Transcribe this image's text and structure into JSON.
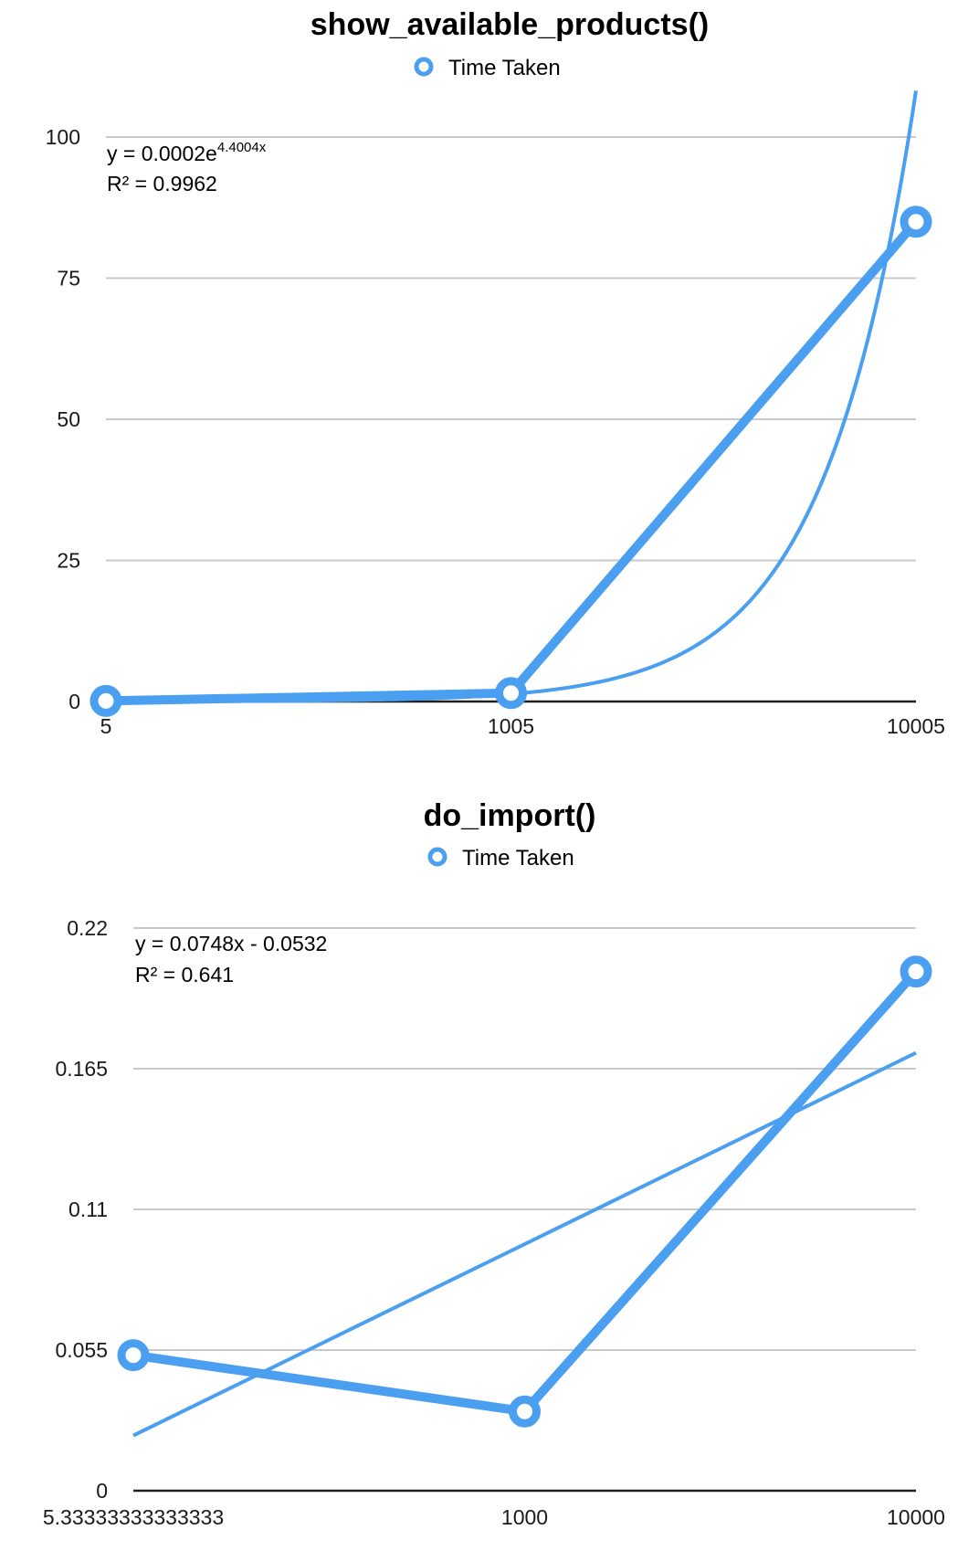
{
  "chart_data": [
    {
      "type": "line",
      "title": "show_available_products()",
      "xlabel": "",
      "ylabel": "",
      "categories": [
        "5",
        "1005",
        "10005"
      ],
      "series": [
        {
          "name": "Time Taken",
          "values": [
            0.1,
            1.5,
            85
          ]
        }
      ],
      "trendline": {
        "kind": "exponential",
        "a": 0.0002,
        "b": 4.4004,
        "equation_prefix": "y = 0.0002e",
        "equation_exponent": "4.4004x",
        "r_squared_label": "R² = 0.9962"
      },
      "yticks": [
        "0",
        "25",
        "50",
        "75",
        "100"
      ],
      "ylim": [
        0,
        100
      ],
      "grid": true,
      "legend_position": "top-center",
      "color": "#4a9ff0"
    },
    {
      "type": "line",
      "title": "do_import()",
      "xlabel": "",
      "ylabel": "",
      "categories": [
        "5.33333333333333",
        "1000",
        "10000"
      ],
      "series": [
        {
          "name": "Time Taken",
          "values": [
            0.053,
            0.031,
            0.203
          ]
        }
      ],
      "trendline": {
        "kind": "linear",
        "slope": 0.0748,
        "intercept": -0.0532,
        "equation": "y = 0.0748x - 0.0532",
        "r_squared_label": "R² = 0.641"
      },
      "yticks": [
        "0",
        "0.055",
        "0.11",
        "0.165",
        "0.22"
      ],
      "ylim": [
        0,
        0.22
      ],
      "grid": true,
      "legend_position": "top-center",
      "color": "#4a9ff0"
    }
  ]
}
